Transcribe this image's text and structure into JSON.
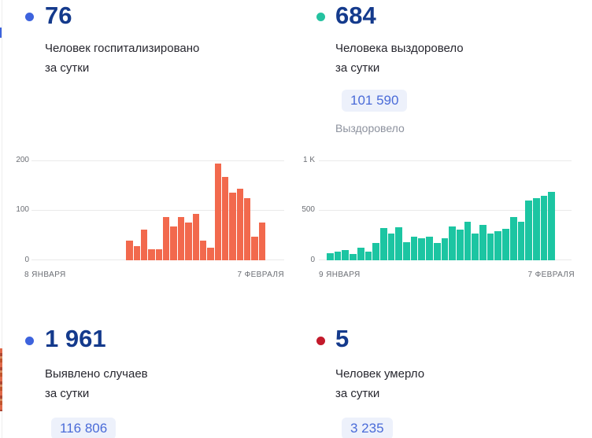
{
  "panels": {
    "hospitalized": {
      "value": "76",
      "dot_color": "#3d63dd",
      "label_line1": "Человек госпитализировано",
      "label_line2": "за сутки"
    },
    "recovered": {
      "value": "684",
      "dot_color": "#25c2a0",
      "label_line1": "Человека выздоровело",
      "label_line2": "за сутки",
      "total_badge": "101 590",
      "total_label": "Выздоровело"
    },
    "cases": {
      "value": "1 961",
      "dot_color": "#3d63dd",
      "label_line1": "Выявлено случаев",
      "label_line2": "за сутки",
      "total_badge": "116 806"
    },
    "deaths": {
      "value": "5",
      "dot_color": "#c31a2b",
      "label_line1": "Человек умерло",
      "label_line2": "за сутки",
      "total_badge": "3 235"
    }
  },
  "chart_data": [
    {
      "type": "bar",
      "title": "Человек госпитализировано за сутки",
      "x_start_label": "8 ЯНВАРЯ",
      "x_end_label": "7 ФЕВРАЛЯ",
      "y_ticks": [
        "0",
        "100",
        "200"
      ],
      "ylim": [
        0,
        200
      ],
      "grid": true,
      "color": "#f2694d",
      "values": [
        0,
        0,
        0,
        0,
        0,
        0,
        0,
        0,
        0,
        0,
        0,
        0,
        39,
        29,
        61,
        22,
        22,
        86,
        67,
        86,
        76,
        93,
        40,
        25,
        193,
        167,
        135,
        144,
        125,
        48,
        76
      ]
    },
    {
      "type": "bar",
      "title": "Человека выздоровело за сутки",
      "x_start_label": "9 ЯНВАРЯ",
      "x_end_label": "7 ФЕВРАЛЯ",
      "y_ticks": [
        "0",
        "500",
        "1 K"
      ],
      "ylim": [
        0,
        1000
      ],
      "grid": true,
      "color": "#1cc5a2",
      "values": [
        70,
        85,
        105,
        65,
        130,
        85,
        170,
        320,
        270,
        330,
        185,
        240,
        220,
        240,
        172,
        217,
        339,
        310,
        384,
        265,
        355,
        268,
        290,
        317,
        436,
        384,
        595,
        622,
        648,
        684
      ]
    }
  ]
}
